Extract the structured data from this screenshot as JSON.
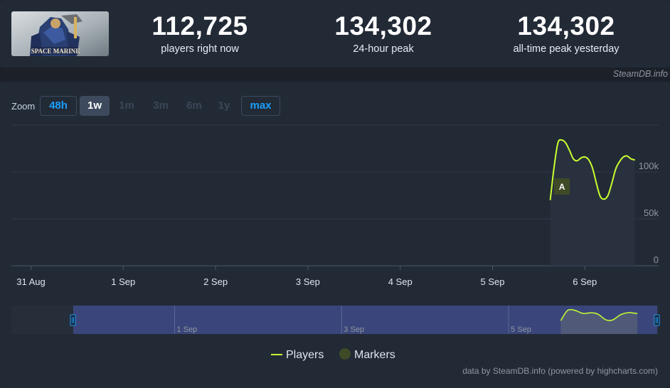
{
  "game": {
    "logo_text": "SPACE MARINE"
  },
  "stats": [
    {
      "value": "112,725",
      "label": "players right now"
    },
    {
      "value": "134,302",
      "label": "24-hour peak"
    },
    {
      "value": "134,302",
      "label": "all-time peak yesterday"
    }
  ],
  "credit_top": "SteamDB.info",
  "zoom": {
    "label": "Zoom",
    "buttons": [
      "48h",
      "1w",
      "1m",
      "3m",
      "6m",
      "1y",
      "max"
    ],
    "active": "1w"
  },
  "colors": {
    "players_line": "#c8ff2e",
    "marker": "#3f4a27",
    "accent": "#1a9fff"
  },
  "chart_data": {
    "type": "line",
    "x_ticks": [
      "31 Aug",
      "1 Sep",
      "2 Sep",
      "3 Sep",
      "4 Sep",
      "5 Sep",
      "6 Sep"
    ],
    "y_ticks": [
      "0",
      "50k",
      "100k"
    ],
    "ylim": [
      0,
      150000
    ],
    "series": [
      {
        "name": "Players",
        "color": "#c8ff2e",
        "points": [
          [
            "5 Sep 15:00",
            70000
          ],
          [
            "5 Sep 16:00",
            105000
          ],
          [
            "5 Sep 17:00",
            131000
          ],
          [
            "5 Sep 18:00",
            134000
          ],
          [
            "5 Sep 19:00",
            131000
          ],
          [
            "5 Sep 20:00",
            123000
          ],
          [
            "5 Sep 21:00",
            114000
          ],
          [
            "5 Sep 22:00",
            112000
          ],
          [
            "5 Sep 23:00",
            115000
          ],
          [
            "6 Sep 00:00",
            116000
          ],
          [
            "6 Sep 01:00",
            113000
          ],
          [
            "6 Sep 02:00",
            104000
          ],
          [
            "6 Sep 03:00",
            88000
          ],
          [
            "6 Sep 04:00",
            74000
          ],
          [
            "6 Sep 05:00",
            71000
          ],
          [
            "6 Sep 06:00",
            75000
          ],
          [
            "6 Sep 07:00",
            88000
          ],
          [
            "6 Sep 08:00",
            103000
          ],
          [
            "6 Sep 09:00",
            111000
          ],
          [
            "6 Sep 10:00",
            116000
          ],
          [
            "6 Sep 11:00",
            117000
          ],
          [
            "6 Sep 12:00",
            114000
          ],
          [
            "6 Sep 13:00",
            112725
          ]
        ]
      }
    ],
    "markers": [
      {
        "x": "5 Sep 16:00",
        "label": "A"
      }
    ],
    "navigator_ticks": [
      "1 Sep",
      "3 Sep",
      "5 Sep"
    ],
    "legend": {
      "players": "Players",
      "markers": "Markers",
      "placement": "bottom-center"
    }
  },
  "credit_bottom": "data by SteamDB.info (powered by highcharts.com)"
}
